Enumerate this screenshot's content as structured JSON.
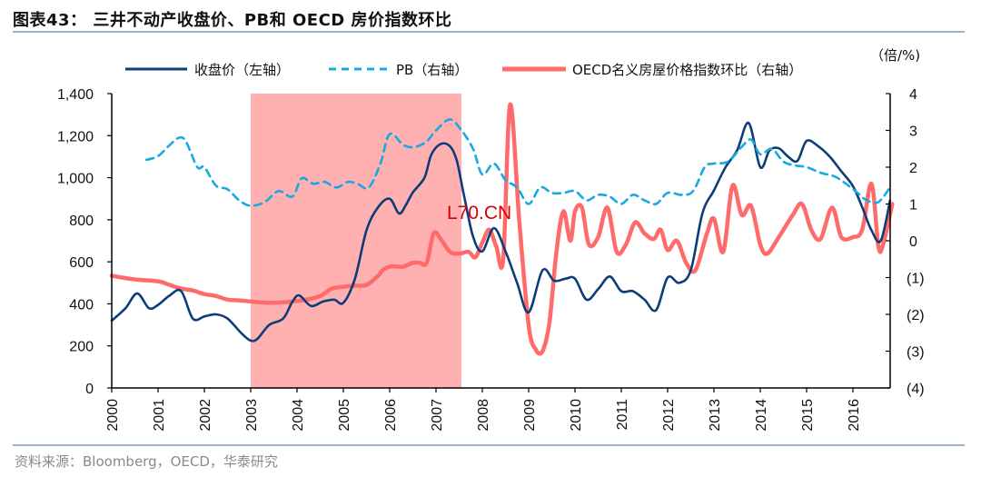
{
  "header": {
    "title": "图表43：  三井不动产收盘价、PB和 OECD 房价指数环比"
  },
  "footer": {
    "source": "资料来源：Bloomberg，OECD，华泰研究"
  },
  "watermark": "L70.CN",
  "chart_data": {
    "type": "line",
    "title": "三井不动产收盘价、PB和 OECD 房价指数环比",
    "xlabel": "",
    "ylabel_left": "",
    "ylabel_right": "(倍/%)",
    "x_range": [
      2000,
      2016.85
    ],
    "ylim_left": [
      0,
      1400
    ],
    "ylim_right": [
      -4,
      4
    ],
    "grid": false,
    "legend_position": "top",
    "x_ticks": [
      "2000",
      "2001",
      "2002",
      "2003",
      "2004",
      "2005",
      "2006",
      "2007",
      "2008",
      "2009",
      "2010",
      "2011",
      "2012",
      "2013",
      "2014",
      "2015",
      "2016"
    ],
    "y_ticks_left": [
      "0",
      "200",
      "400",
      "600",
      "800",
      "1,000",
      "1,200",
      "1,400"
    ],
    "y_ticks_right": [
      "(4)",
      "(3)",
      "(2)",
      "(1)",
      "0",
      "1",
      "2",
      "3",
      "4"
    ],
    "y_ticks_right_values": [
      -4,
      -3,
      -2,
      -1,
      0,
      1,
      2,
      3,
      4
    ],
    "y_ticks_left_values": [
      0,
      200,
      400,
      600,
      800,
      1000,
      1200,
      1400
    ],
    "shaded_region": {
      "from": 2003.0,
      "to": 2007.55,
      "color": "#ffb0b0"
    },
    "colors": {
      "close": "#0d3c7a",
      "pb": "#17a9e1",
      "oecd": "#ff6b6b"
    },
    "series": [
      {
        "name": "收盘价（左轴）",
        "axis": "left",
        "style": "solid",
        "x": [
          2000.0,
          2000.3,
          2000.55,
          2000.8,
          2001.0,
          2001.25,
          2001.5,
          2001.75,
          2002.0,
          2002.25,
          2002.5,
          2002.8,
          2003.0,
          2003.15,
          2003.4,
          2003.7,
          2003.9,
          2004.05,
          2004.3,
          2004.55,
          2004.8,
          2005.0,
          2005.25,
          2005.5,
          2005.75,
          2006.0,
          2006.2,
          2006.35,
          2006.5,
          2006.75,
          2006.9,
          2007.1,
          2007.3,
          2007.45,
          2007.6,
          2007.8,
          2008.0,
          2008.25,
          2008.5,
          2008.75,
          2009.0,
          2009.3,
          2009.55,
          2009.8,
          2010.0,
          2010.25,
          2010.5,
          2010.75,
          2011.0,
          2011.25,
          2011.5,
          2011.75,
          2012.0,
          2012.25,
          2012.5,
          2012.75,
          2013.0,
          2013.25,
          2013.5,
          2013.75,
          2014.0,
          2014.2,
          2014.4,
          2014.6,
          2014.8,
          2015.0,
          2015.25,
          2015.5,
          2015.75,
          2016.0,
          2016.2,
          2016.4,
          2016.6,
          2016.8
        ],
        "values": [
          320,
          380,
          450,
          380,
          395,
          440,
          460,
          330,
          340,
          350,
          330,
          260,
          225,
          235,
          300,
          330,
          410,
          440,
          390,
          410,
          420,
          405,
          520,
          750,
          860,
          900,
          830,
          870,
          930,
          1000,
          1110,
          1160,
          1150,
          1080,
          920,
          720,
          650,
          760,
          650,
          500,
          360,
          560,
          510,
          520,
          520,
          420,
          470,
          530,
          460,
          460,
          420,
          370,
          525,
          500,
          560,
          830,
          940,
          1050,
          1130,
          1260,
          1050,
          1130,
          1140,
          1100,
          1080,
          1175,
          1150,
          1100,
          1030,
          960,
          860,
          750,
          700,
          890
        ]
      },
      {
        "name": "PB（右轴）",
        "axis": "right",
        "style": "dashed",
        "x": [
          2000.75,
          2001.0,
          2001.25,
          2001.45,
          2001.6,
          2001.85,
          2002.0,
          2002.25,
          2002.5,
          2002.75,
          2003.0,
          2003.3,
          2003.6,
          2003.9,
          2004.1,
          2004.35,
          2004.6,
          2004.85,
          2005.1,
          2005.3,
          2005.55,
          2005.8,
          2006.0,
          2006.3,
          2006.55,
          2006.8,
          2007.0,
          2007.3,
          2007.55,
          2007.8,
          2008.0,
          2008.25,
          2008.5,
          2008.75,
          2009.0,
          2009.25,
          2009.5,
          2009.75,
          2010.0,
          2010.25,
          2010.5,
          2010.75,
          2011.0,
          2011.25,
          2011.5,
          2011.75,
          2012.0,
          2012.3,
          2012.55,
          2012.8,
          2013.0,
          2013.3,
          2013.6,
          2013.8,
          2014.0,
          2014.25,
          2014.5,
          2014.75,
          2015.0,
          2015.3,
          2015.6,
          2015.85,
          2016.1,
          2016.3,
          2016.55,
          2016.8
        ],
        "values": [
          2.2,
          2.3,
          2.6,
          2.8,
          2.7,
          2.0,
          2.0,
          1.5,
          1.4,
          1.1,
          0.95,
          1.05,
          1.35,
          1.2,
          1.7,
          1.55,
          1.6,
          1.45,
          1.6,
          1.55,
          1.45,
          2.1,
          2.9,
          2.6,
          2.55,
          2.7,
          3.0,
          3.3,
          3.0,
          2.5,
          1.8,
          2.1,
          1.65,
          1.45,
          1.0,
          1.45,
          1.3,
          1.3,
          1.35,
          1.1,
          1.25,
          1.2,
          1.0,
          1.25,
          1.1,
          1.0,
          1.3,
          1.25,
          1.35,
          2.0,
          2.1,
          2.15,
          2.55,
          2.75,
          2.35,
          2.5,
          2.15,
          2.05,
          2.0,
          1.85,
          1.75,
          1.55,
          1.3,
          1.1,
          1.05,
          1.45
        ]
      },
      {
        "name": "OECD名义房屋价格指数环比（右轴）",
        "axis": "right",
        "style": "solid-thick",
        "x": [
          2000.0,
          2000.5,
          2001.0,
          2001.25,
          2001.5,
          2001.75,
          2002.0,
          2002.25,
          2002.5,
          2002.75,
          2003.0,
          2003.3,
          2003.6,
          2003.9,
          2004.2,
          2004.5,
          2004.75,
          2005.0,
          2005.25,
          2005.5,
          2005.75,
          2005.85,
          2006.0,
          2006.15,
          2006.3,
          2006.5,
          2006.65,
          2006.8,
          2006.95,
          2007.1,
          2007.3,
          2007.5,
          2007.7,
          2007.85,
          2008.0,
          2008.15,
          2008.3,
          2008.45,
          2008.6,
          2008.8,
          2009.0,
          2009.15,
          2009.3,
          2009.45,
          2009.6,
          2009.75,
          2009.9,
          2010.0,
          2010.15,
          2010.3,
          2010.5,
          2010.7,
          2010.9,
          2011.1,
          2011.3,
          2011.5,
          2011.7,
          2011.85,
          2012.0,
          2012.2,
          2012.4,
          2012.6,
          2012.85,
          2013.0,
          2013.2,
          2013.4,
          2013.6,
          2013.8,
          2014.0,
          2014.15,
          2014.4,
          2014.7,
          2014.9,
          2015.1,
          2015.3,
          2015.55,
          2015.75,
          2016.0,
          2016.2,
          2016.4,
          2016.55,
          2016.65,
          2016.85
        ],
        "values": [
          -0.95,
          -1.05,
          -1.1,
          -1.2,
          -1.3,
          -1.35,
          -1.45,
          -1.5,
          -1.6,
          -1.62,
          -1.65,
          -1.68,
          -1.68,
          -1.65,
          -1.6,
          -1.5,
          -1.3,
          -1.25,
          -1.22,
          -1.2,
          -0.95,
          -0.8,
          -0.7,
          -0.7,
          -0.7,
          -0.6,
          -0.6,
          -0.6,
          0.2,
          0.05,
          -0.3,
          -0.35,
          -0.3,
          -0.45,
          -0.05,
          0.3,
          -0.15,
          -0.5,
          3.7,
          0.5,
          -2.3,
          -2.95,
          -3.0,
          -2.2,
          -0.3,
          0.8,
          0.0,
          0.8,
          0.9,
          -0.1,
          0.1,
          0.9,
          -0.3,
          -0.1,
          0.5,
          0.2,
          0.05,
          0.3,
          -0.25,
          0.0,
          -0.6,
          -0.8,
          0.2,
          0.6,
          -0.3,
          1.5,
          0.7,
          0.95,
          -0.1,
          -0.35,
          0.1,
          0.7,
          1.0,
          0.3,
          0.05,
          0.9,
          0.1,
          0.1,
          0.3,
          1.55,
          -0.15,
          -0.1,
          1.0
        ]
      }
    ]
  },
  "legend": {
    "items": [
      {
        "label": "收盘价（左轴）"
      },
      {
        "label": "PB（右轴）"
      },
      {
        "label": "OECD名义房屋价格指数环比（右轴）"
      }
    ],
    "unit_label": "（倍/%)"
  }
}
